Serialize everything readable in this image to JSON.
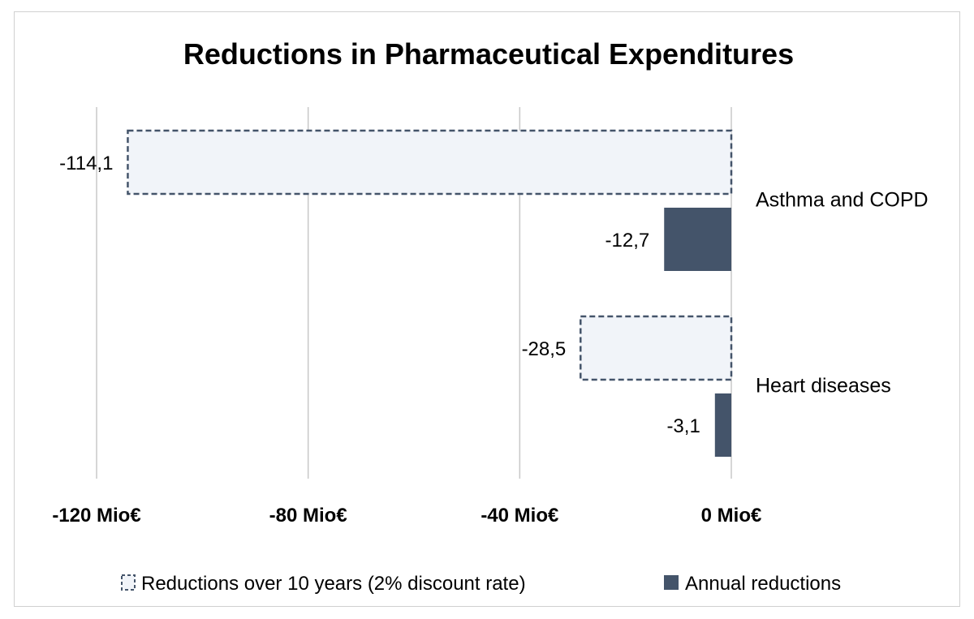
{
  "chart_data": {
    "type": "bar",
    "orientation": "horizontal",
    "title": "Reductions in Pharmaceutical Expenditures",
    "categories": [
      "Asthma and COPD",
      "Heart diseases"
    ],
    "series": [
      {
        "name": "Reductions over 10 years (2% discount rate)",
        "values": [
          -114.1,
          -28.5
        ],
        "labels": [
          "-114,1",
          "-28,5"
        ],
        "fill": "#f1f4f9",
        "stroke": "#44546a",
        "style": "dashed"
      },
      {
        "name": "Annual reductions",
        "values": [
          -12.7,
          -3.1
        ],
        "labels": [
          "-12,7",
          "-3,1"
        ],
        "fill": "#44546a",
        "style": "solid"
      }
    ],
    "xlim": [
      -120,
      0
    ],
    "ticks": [
      -120,
      -80,
      -40,
      0
    ],
    "tick_labels": [
      "-120 Mio€",
      "-80 Mio€",
      "-40 Mio€",
      "0 Mio€"
    ],
    "grid": true,
    "legend_position": "bottom"
  }
}
